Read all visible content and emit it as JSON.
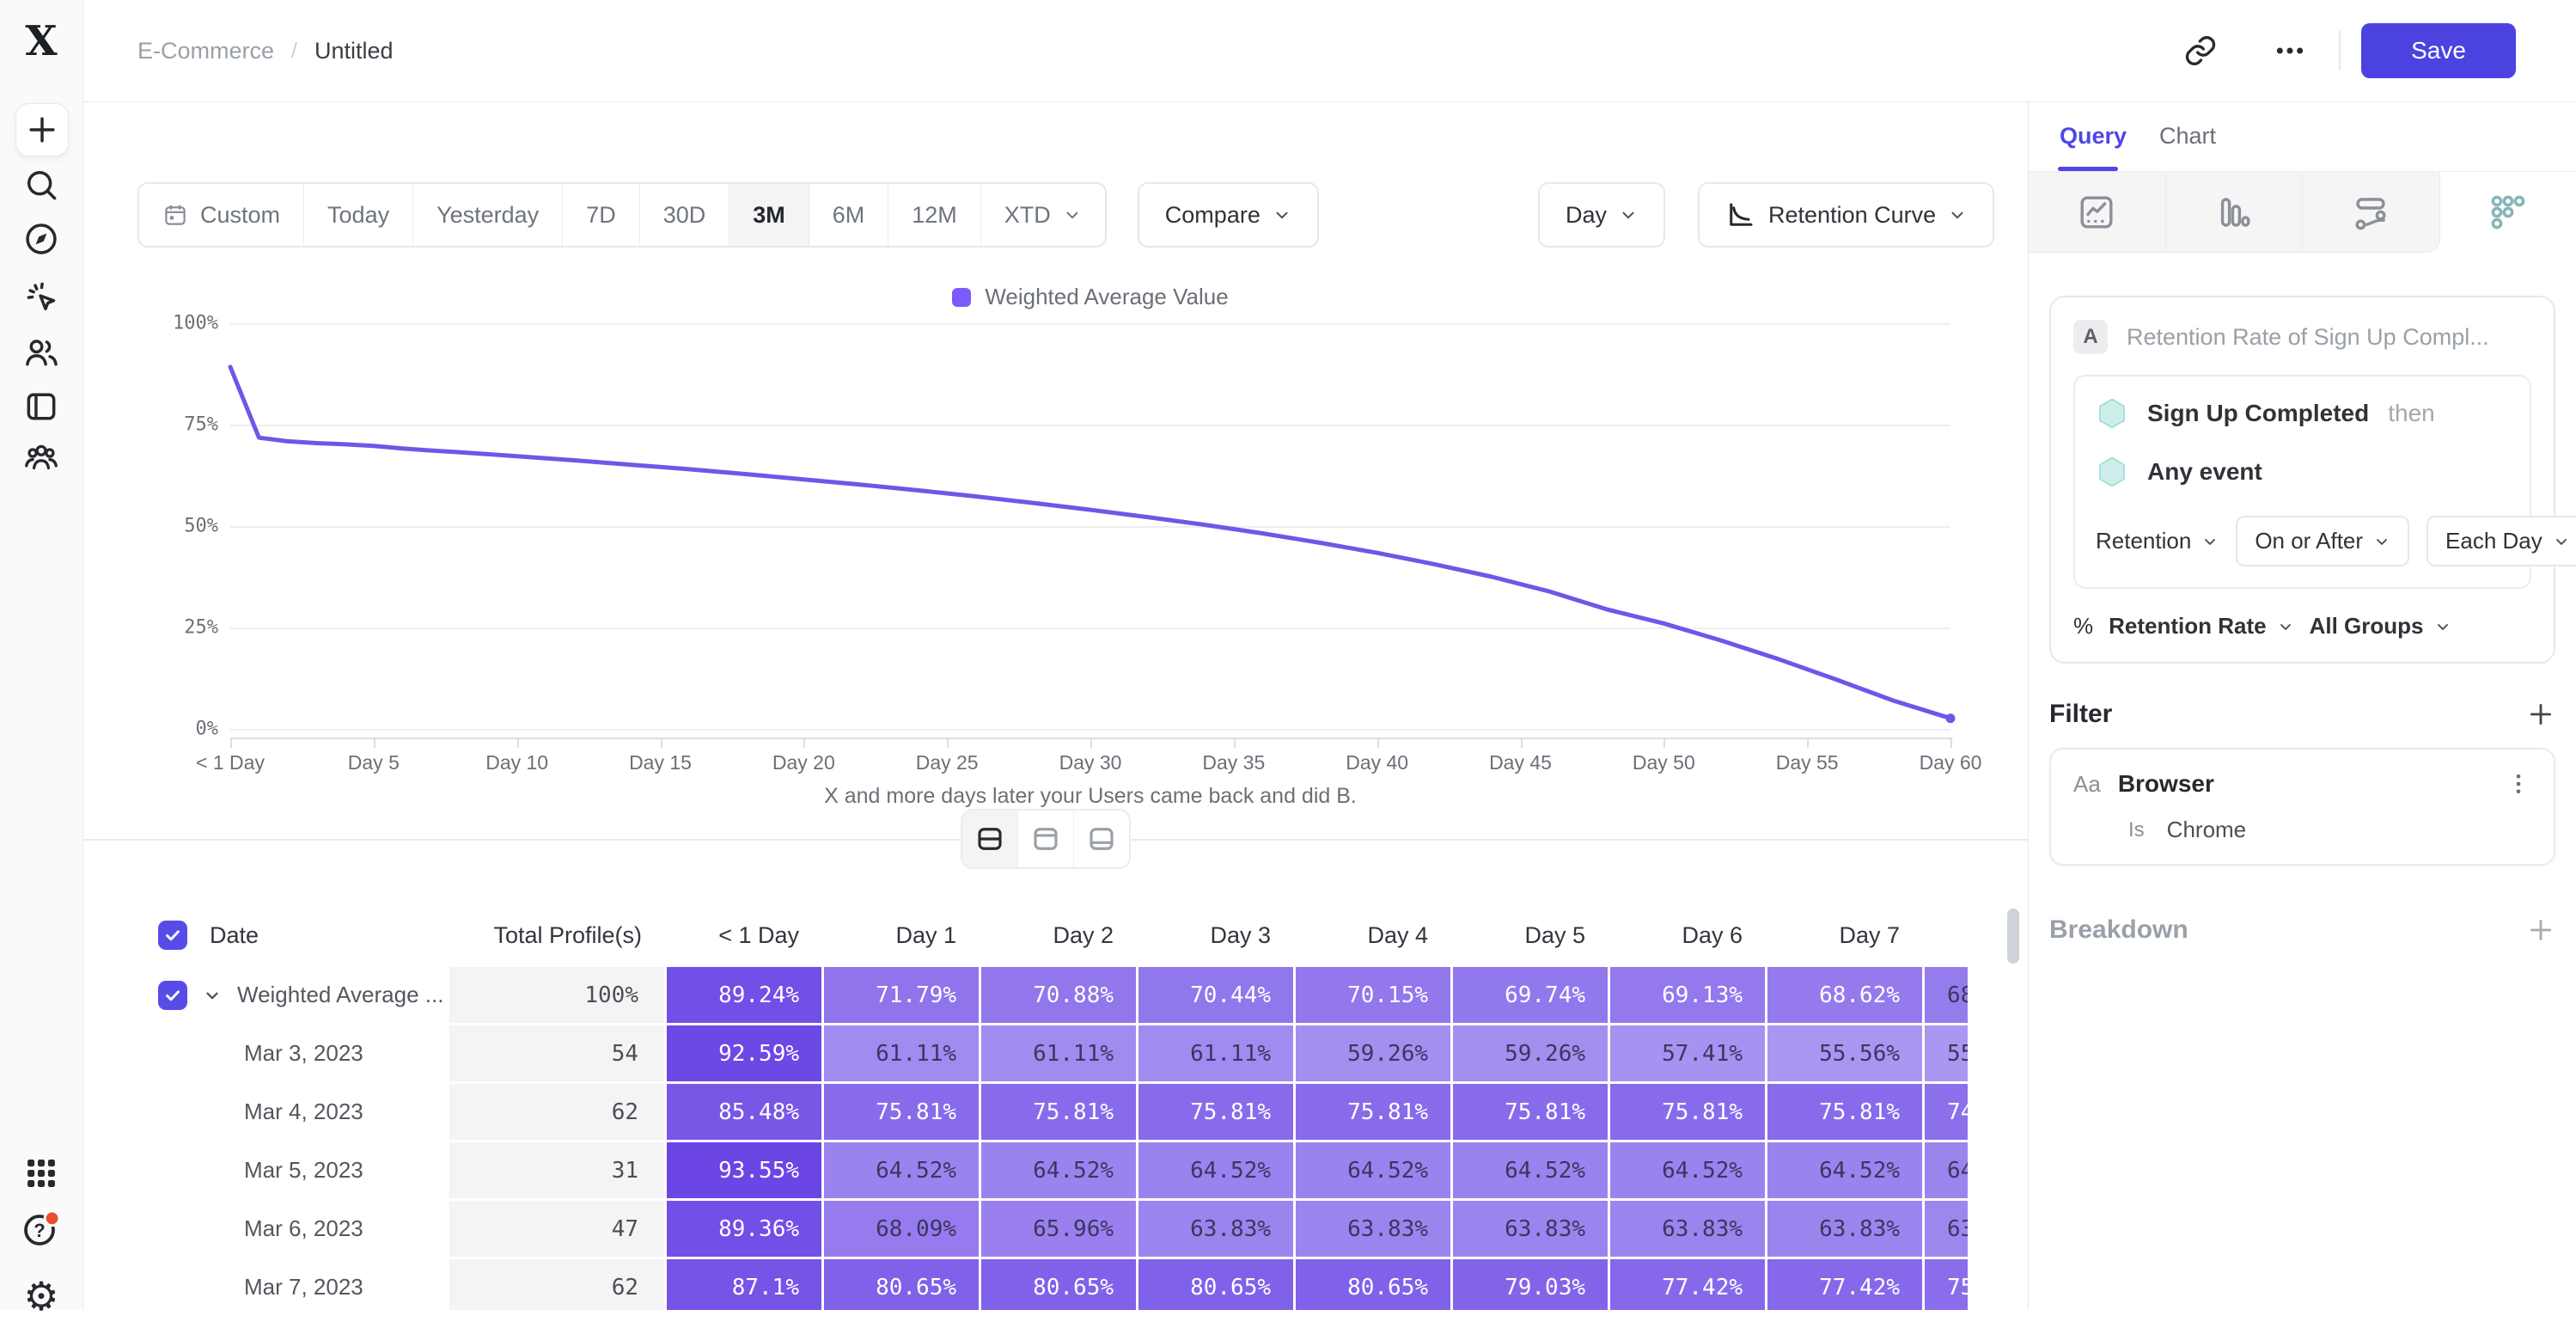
{
  "colors": {
    "accent": "#4F46E5",
    "save_button": "#4C42E0",
    "line": "#7056E8",
    "legend_swatch": "#7B5CFA",
    "cell_low": "#AB97F2",
    "cell_high": "#6A45E4",
    "checkbox": "#584CE8",
    "notification_dot": "#E84E2F",
    "event_hexagon": "#CDEEEA"
  },
  "topbar": {
    "breadcrumb": [
      "E-Commerce",
      "Untitled"
    ],
    "save_label": "Save"
  },
  "sidebar": {
    "items": [
      "plus-icon",
      "search-icon",
      "compass-icon",
      "cursor-click-icon",
      "users-icon",
      "notebook-icon",
      "cohort-icon"
    ],
    "bottom_items": [
      "apps-grid-icon",
      "help-icon",
      "settings-icon"
    ]
  },
  "toolbar": {
    "ranges": [
      "Custom",
      "Today",
      "Yesterday",
      "7D",
      "30D",
      "3M",
      "6M",
      "12M",
      "XTD"
    ],
    "active_range": "3M",
    "compare_label": "Compare",
    "granularity_label": "Day",
    "chart_type_label": "Retention Curve"
  },
  "legend": {
    "label": "Weighted Average Value"
  },
  "chart_data": {
    "type": "line",
    "title": "Retention Curve",
    "xlabel": "X and more days later your Users came back and did B.",
    "ylabel": "",
    "xlim": [
      0,
      60
    ],
    "ylim": [
      0,
      100
    ],
    "grid": true,
    "legend_position": "top-center",
    "x_ticks": [
      "< 1 Day",
      "Day 5",
      "Day 10",
      "Day 15",
      "Day 20",
      "Day 25",
      "Day 30",
      "Day 35",
      "Day 40",
      "Day 45",
      "Day 50",
      "Day 55",
      "Day 60"
    ],
    "y_ticks": [
      "100%",
      "75%",
      "50%",
      "25%",
      "0%"
    ],
    "series": [
      {
        "name": "Weighted Average Value",
        "color": "#7056E8",
        "x": [
          0,
          1,
          2,
          3,
          4,
          5,
          6,
          7,
          8,
          10,
          12,
          14,
          16,
          18,
          20,
          22,
          24,
          26,
          28,
          30,
          32,
          34,
          36,
          38,
          40,
          42,
          44,
          46,
          48,
          50,
          52,
          54,
          56,
          58,
          60
        ],
        "y": [
          89.24,
          71.79,
          70.88,
          70.44,
          70.15,
          69.74,
          69.13,
          68.62,
          68.2,
          67.2,
          66.2,
          65.1,
          64.0,
          62.8,
          61.5,
          60.2,
          58.8,
          57.3,
          55.7,
          54.0,
          52.2,
          50.3,
          48.2,
          45.9,
          43.4,
          40.6,
          37.5,
          33.9,
          29.5,
          26.0,
          21.8,
          17.2,
          12.2,
          7.0,
          2.6
        ]
      }
    ]
  },
  "view_toggle": {
    "options": [
      "split-view",
      "chart-only-view",
      "table-only-view"
    ],
    "active": "split-view"
  },
  "table": {
    "headers": [
      "Date",
      "Total Profile(s)",
      "< 1 Day",
      "Day 1",
      "Day 2",
      "Day 3",
      "Day 4",
      "Day 5",
      "Day 6",
      "Day 7"
    ],
    "rows": [
      {
        "date": "Weighted Average ...",
        "is_average": true,
        "total": "100%",
        "cells": [
          "89.24%",
          "71.79%",
          "70.88%",
          "70.44%",
          "70.15%",
          "69.74%",
          "69.13%",
          "68.62%",
          "68"
        ]
      },
      {
        "date": "Mar 3, 2023",
        "is_average": false,
        "total": "54",
        "cells": [
          "92.59%",
          "61.11%",
          "61.11%",
          "61.11%",
          "59.26%",
          "59.26%",
          "57.41%",
          "55.56%",
          "55"
        ]
      },
      {
        "date": "Mar 4, 2023",
        "is_average": false,
        "total": "62",
        "cells": [
          "85.48%",
          "75.81%",
          "75.81%",
          "75.81%",
          "75.81%",
          "75.81%",
          "75.81%",
          "75.81%",
          "74"
        ]
      },
      {
        "date": "Mar 5, 2023",
        "is_average": false,
        "total": "31",
        "cells": [
          "93.55%",
          "64.52%",
          "64.52%",
          "64.52%",
          "64.52%",
          "64.52%",
          "64.52%",
          "64.52%",
          "64"
        ]
      },
      {
        "date": "Mar 6, 2023",
        "is_average": false,
        "total": "47",
        "cells": [
          "89.36%",
          "68.09%",
          "65.96%",
          "63.83%",
          "63.83%",
          "63.83%",
          "63.83%",
          "63.83%",
          "63"
        ]
      },
      {
        "date": "Mar 7, 2023",
        "is_average": false,
        "total": "62",
        "cells": [
          "87.1%",
          "80.65%",
          "80.65%",
          "80.65%",
          "80.65%",
          "79.03%",
          "77.42%",
          "77.42%",
          "75"
        ]
      }
    ]
  },
  "panel": {
    "tabs": [
      "Query",
      "Chart"
    ],
    "active_tab": "Query",
    "icon_tabs": [
      "insights-icon",
      "bar-chart-icon",
      "flows-icon",
      "retention-icon"
    ],
    "active_icon_tab": "retention-icon",
    "query": {
      "label_badge": "A",
      "title_placeholder": "Retention Rate of Sign Up Compl...",
      "first_event": "Sign Up Completed",
      "then_label": "then",
      "return_event": "Any event",
      "retention_dropdown": "Retention",
      "window_dropdown": "On or After",
      "interval_dropdown": "Each Day",
      "measure_prefix": "%",
      "measure_dropdown": "Retention Rate",
      "groups_dropdown": "All Groups"
    },
    "filter": {
      "title": "Filter",
      "property_type_badge": "Aa",
      "property": "Browser",
      "operator": "Is",
      "value": "Chrome"
    },
    "breakdown": {
      "title": "Breakdown"
    }
  }
}
